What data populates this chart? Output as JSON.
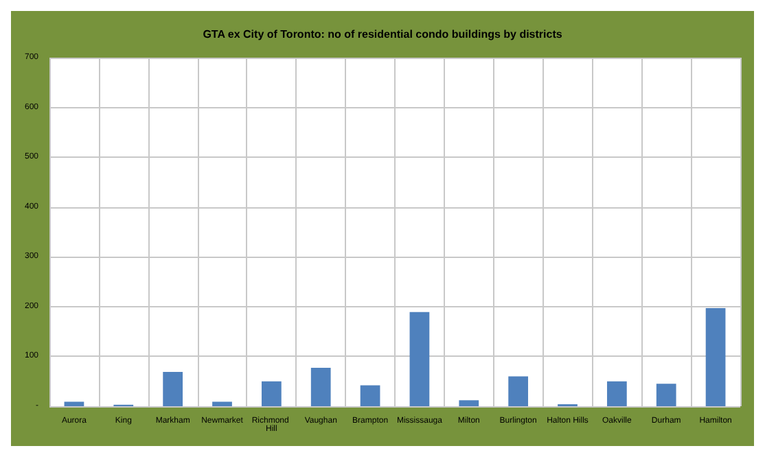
{
  "chart_data": {
    "type": "bar",
    "title": "GTA ex City of Toronto: no of residential condo buildings by districts",
    "categories": [
      "Aurora",
      "King",
      "Markham",
      "Newmarket",
      "Richmond Hill",
      "Vaughan",
      "Brampton",
      "Mississauga",
      "Milton",
      "Burlington",
      "Halton Hills",
      "Oakville",
      "Durham",
      "Hamilton"
    ],
    "values": [
      9,
      3,
      69,
      9,
      50,
      77,
      42,
      189,
      12,
      60,
      4,
      50,
      45,
      197
    ],
    "color": "#4f81bd",
    "ylim": [
      0,
      700
    ],
    "yticks": [
      {
        "value": 0,
        "label": "-"
      },
      100,
      200,
      300,
      400,
      500,
      600,
      700
    ],
    "grid": true
  }
}
